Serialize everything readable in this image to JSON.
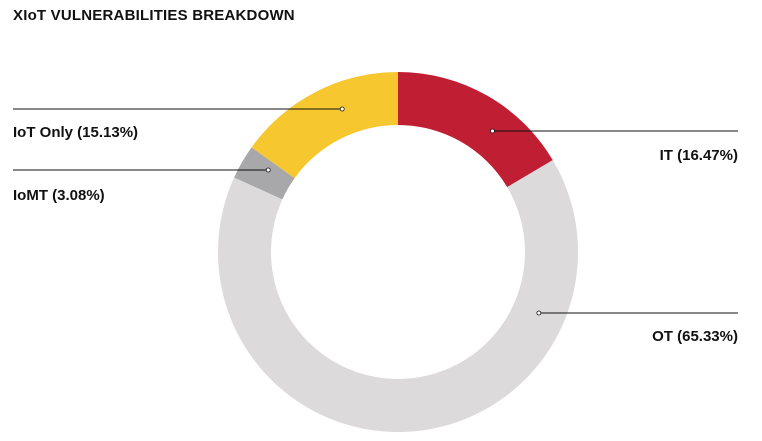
{
  "chart_data": {
    "type": "pie",
    "variant": "donut",
    "title": "XIoT VULNERABILITIES BREAKDOWN",
    "slices": [
      {
        "name": "IT",
        "value": 16.47,
        "label": "IT (16.47%)",
        "color": "#c01e32"
      },
      {
        "name": "OT",
        "value": 65.33,
        "label": "OT (65.33%)",
        "color": "#dcdadb"
      },
      {
        "name": "IoMT",
        "value": 3.08,
        "label": "IoMT (3.08%)",
        "color": "#a8a7a9"
      },
      {
        "name": "IoT Only",
        "value": 15.13,
        "label": "IoT Only (15.13%)",
        "color": "#f7c72f"
      }
    ],
    "start_angle": "12 o'clock",
    "direction": "clockwise"
  }
}
